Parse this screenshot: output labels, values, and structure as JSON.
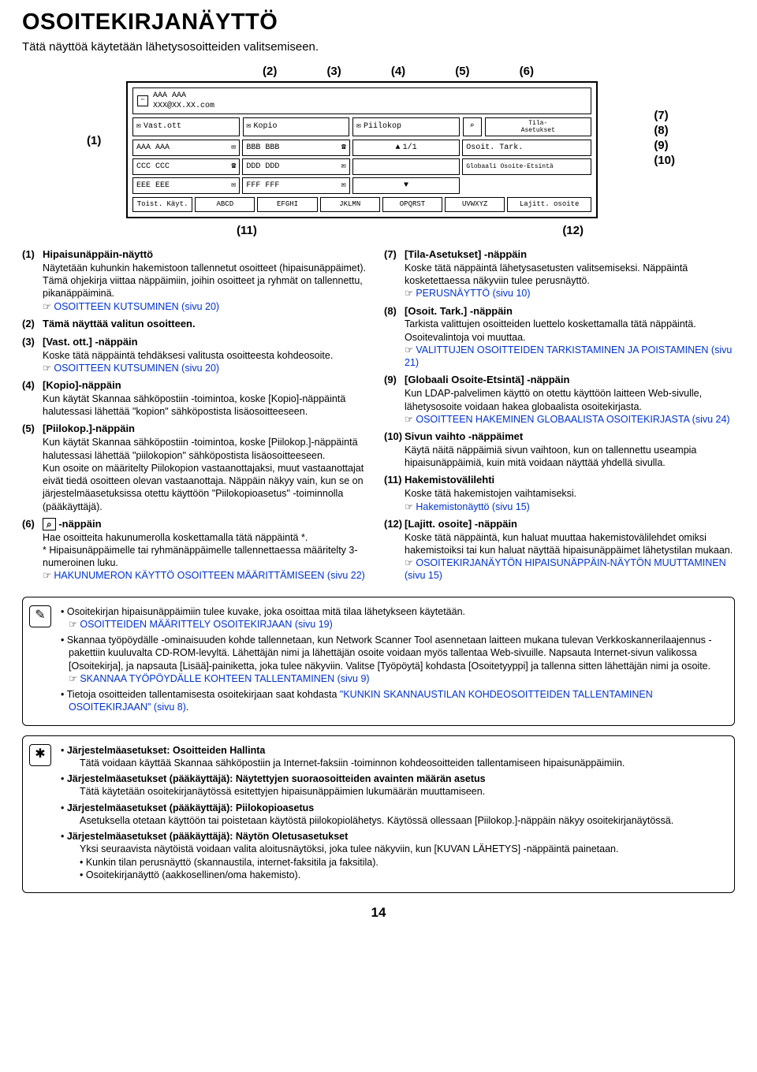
{
  "heading": "OSOITEKIRJANÄYTTÖ",
  "subtitle": "Tätä näyttöä käytetään lähetysosoitteiden valitsemiseen.",
  "pageNumber": "14",
  "topRefs": [
    "(2)",
    "(3)",
    "(4)",
    "(5)",
    "(6)"
  ],
  "leftRef": "(1)",
  "rightRefs": [
    "(7)",
    "(8)",
    "(9)",
    "(10)"
  ],
  "bottomRefs": [
    "(11)",
    "(12)"
  ],
  "panel": {
    "headerName": "AAA AAA",
    "headerAddr": "XXX@XX.XX.com",
    "tabs": [
      "Vast.ott",
      "Kopio",
      "Piilokop"
    ],
    "sideBtnTop": "Tila-\nAsetukset",
    "page": "1/1",
    "row1": [
      "AAA AAA",
      "BBB BBB",
      "",
      "Osoit. Tark."
    ],
    "row2": [
      "CCC CCC",
      "DDD DDD",
      "",
      "Globaali Osoite-Etsintä"
    ],
    "row3": [
      "EEE EEE",
      "FFF FFF",
      "",
      ""
    ],
    "footer": [
      "Toist. Käyt.",
      "ABCD",
      "EFGHI",
      "JKLMN",
      "OPQRST",
      "UVWXYZ",
      "Lajitt. osoite"
    ]
  },
  "leftItems": [
    {
      "n": "(1)",
      "t": "Hipaisunäppäin-näyttö",
      "body": "Näytetään kuhunkin hakemistoon tallennetut osoitteet (hipaisunäppäimet). Tämä ohjekirja viittaa näppäimiin, joihin osoitteet ja ryhmät on tallennettu, pikanäppäiminä.",
      "link": "OSOITTEEN KUTSUMINEN (sivu 20)"
    },
    {
      "n": "(2)",
      "t": "Tämä näyttää valitun osoitteen.",
      "body": "",
      "link": ""
    },
    {
      "n": "(3)",
      "t": "[Vast. ott.] -näppäin",
      "body": "Koske tätä näppäintä tehdäksesi valitusta osoitteesta kohdeosoite.",
      "link": "OSOITTEEN KUTSUMINEN (sivu 20)"
    },
    {
      "n": "(4)",
      "t": "[Kopio]-näppäin",
      "body": "Kun käytät Skannaa sähköpostiin -toimintoa, koske [Kopio]-näppäintä halutessasi lähettää \"kopion\" sähköpostista lisäosoitteeseen.",
      "link": ""
    },
    {
      "n": "(5)",
      "t": "[Piilokop.]-näppäin",
      "body": "Kun käytät Skannaa sähköpostiin -toimintoa, koske [Piilokop.]-näppäintä halutessasi lähettää \"piilokopion\" sähköpostista lisäosoitteeseen.\nKun osoite on määritelty Piilokopion vastaanottajaksi, muut vastaanottajat eivät tiedä osoitteen olevan vastaanottaja. Näppäin näkyy vain, kun se on järjestelmäasetuksissa otettu käyttöön \"Piilokopioasetus\" -toiminnolla (pääkäyttäjä).",
      "link": ""
    },
    {
      "n": "(6)",
      "t": " -näppäin",
      "body": "Hae osoitteita hakunumerolla koskettamalla tätä näppäintä *.\n* Hipaisunäppäimelle tai ryhmänäppäimelle tallennettaessa   määritelty 3-numeroinen luku.",
      "link": "HAKUNUMERON KÄYTTÖ OSOITTEEN MÄÄRITTÄMISEEN (sivu 22)",
      "icon": "⌕"
    }
  ],
  "rightItems": [
    {
      "n": "(7)",
      "t": "[Tila-Asetukset] -näppäin",
      "body": "Koske tätä näppäintä lähetysasetusten valitsemiseksi. Näppäintä kosketettaessa näkyviin tulee perusnäyttö.",
      "link": "PERUSNÄYTTÖ (sivu 10)"
    },
    {
      "n": "(8)",
      "t": "[Osoit. Tark.] -näppäin",
      "body": "Tarkista valittujen osoitteiden luettelo koskettamalla tätä näppäintä. Osoitevalintoja voi muuttaa.",
      "link": "VALITTUJEN OSOITTEIDEN TARKISTAMINEN JA POISTAMINEN (sivu 21)"
    },
    {
      "n": "(9)",
      "t": "[Globaali Osoite-Etsintä] -näppäin",
      "body": "Kun LDAP-palvelimen käyttö on otettu käyttöön laitteen Web-sivulle, lähetysosoite voidaan hakea globaalista osoitekirjasta.",
      "link": "OSOITTEEN HAKEMINEN GLOBAALISTA OSOITEKIRJASTA (sivu 24)"
    },
    {
      "n": "(10)",
      "t": "Sivun vaihto -näppäimet",
      "body": "Käytä näitä näppäimiä sivun vaihtoon, kun on tallennettu useampia hipaisunäppäimiä, kuin mitä voidaan näyttää yhdellä sivulla.",
      "link": ""
    },
    {
      "n": "(11)",
      "t": "Hakemistovälilehti",
      "body": "Koske tätä hakemistojen vaihtamiseksi.",
      "link": "Hakemistonäyttö (sivu 15)"
    },
    {
      "n": "(12)",
      "t": "[Lajitt. osoite] -näppäin",
      "body": "Koske tätä näppäintä, kun haluat muuttaa hakemistovälilehdet omiksi hakemistoiksi tai kun haluat näyttää hipaisunäppäimet lähetystilan mukaan.",
      "link": "OSOITEKIRJANÄYTÖN HIPAISUNÄPPÄIN-NÄYTÖN MUUTTAMINEN (sivu 15)"
    }
  ],
  "note1": {
    "bullets": [
      {
        "text": "Osoitekirjan hipaisunäppäimiin tulee kuvake, joka osoittaa mitä tilaa lähetykseen käytetään.",
        "link": "OSOITTEIDEN MÄÄRITTELY OSOITEKIRJAAN (sivu 19)"
      },
      {
        "text": "Skannaa työpöydälle -ominaisuuden kohde tallennetaan, kun Network Scanner Tool asennetaan laitteen mukana tulevan Verkkoskannerilaajennus -pakettiin kuuluvalta CD-ROM-levyltä. Lähettäjän nimi ja lähettäjän osoite voidaan myös tallentaa Web-sivuille. Napsauta Internet-sivun valikossa [Osoitekirja], ja napsauta [Lisää]-painiketta, joka tulee näkyviin. Valitse [Työpöytä] kohdasta [Osoitetyyppi] ja tallenna sitten lähettäjän nimi ja osoite.",
        "link": "SKANNAA TYÖPÖYDÄLLE KOHTEEN TALLENTAMINEN (sivu 9)"
      },
      {
        "text": "Tietoja osoitteiden tallentamisesta osoitekirjaan saat kohdasta ",
        "inlineLink": "\"KUNKIN SKANNAUSTILAN KOHDEOSOITTEIDEN TALLENTAMINEN OSOITEKIRJAAN\" (sivu 8)",
        "after": "."
      }
    ]
  },
  "note2": {
    "items": [
      {
        "t": "Järjestelmäasetukset: Osoitteiden Hallinta",
        "b": "Tätä voidaan käyttää Skannaa sähköpostiin ja Internet-faksiin -toiminnon kohdeosoitteiden tallentamiseen hipaisunäppäimiin."
      },
      {
        "t": "Järjestelmäasetukset (pääkäyttäjä): Näytettyjen suoraosoitteiden avainten määrän asetus",
        "b": "Tätä käytetään osoitekirjanäytössä esitettyjen hipaisunäppäimien lukumäärän muuttamiseen."
      },
      {
        "t": "Järjestelmäasetukset (pääkäyttäjä): Piilokopioasetus",
        "b": "Asetuksella otetaan käyttöön tai poistetaan käytöstä piilokopiolähetys. Käytössä ollessaan [Piilokop.]-näppäin näkyy osoitekirjanäytössä."
      },
      {
        "t": "Järjestelmäasetukset (pääkäyttäjä): Näytön Oletusasetukset",
        "b": "Yksi seuraavista näytöistä voidaan valita aloitusnäytöksi, joka tulee näkyviin, kun [KUVAN LÄHETYS] -näppäintä painetaan.",
        "subs": [
          "Kunkin tilan perusnäyttö (skannaustila, internet-faksitila ja faksitila).",
          "Osoitekirjanäyttö (aakkosellinen/oma hakemisto)."
        ]
      }
    ]
  }
}
